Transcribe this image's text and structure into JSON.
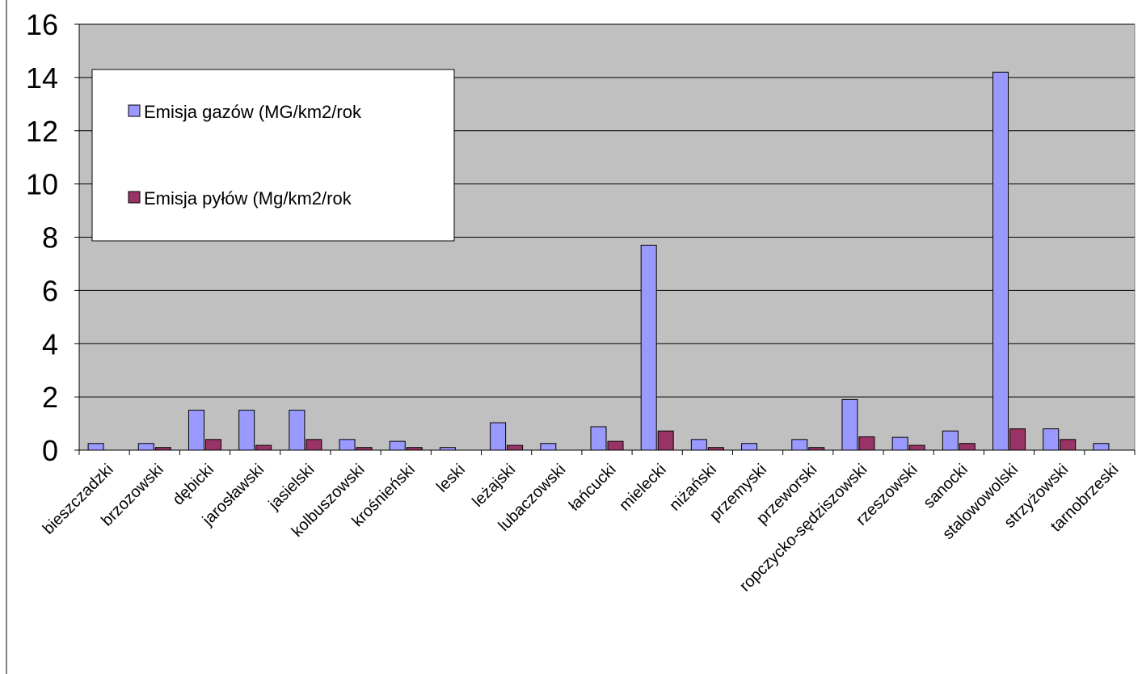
{
  "chart_data": {
    "type": "bar",
    "categories": [
      "bieszczadzki",
      "brzozowski",
      "dębicki",
      "jarosławski",
      "jasielski",
      "kolbuszowski",
      "krośnieński",
      "leski",
      "leżajski",
      "lubaczowski",
      "łańcucki",
      "mielecki",
      "niżański",
      "przemyski",
      "przeworski",
      "ropczycko-sędziszowski",
      "rzeszowski",
      "sanocki",
      "stalowowolski",
      "strzyżowski",
      "tarnobrzeski"
    ],
    "series": [
      {
        "name": "Emisja gazów (MG/km2/rok",
        "color": "#9999ff",
        "values": [
          0.25,
          0.25,
          1.5,
          1.5,
          1.5,
          0.4,
          0.33,
          0.1,
          1.03,
          0.25,
          0.88,
          7.7,
          0.4,
          0.25,
          0.4,
          1.9,
          0.48,
          0.72,
          14.2,
          0.8,
          0.25
        ]
      },
      {
        "name": "Emisja pyłów (Mg/km2/rok",
        "color": "#993366",
        "values": [
          0,
          0.1,
          0.4,
          0.18,
          0.4,
          0.1,
          0.1,
          0,
          0.18,
          0,
          0.33,
          0.72,
          0.1,
          0,
          0.1,
          0.5,
          0.18,
          0.25,
          0.8,
          0.4,
          0
        ]
      }
    ],
    "yticks": [
      0,
      2,
      4,
      6,
      8,
      10,
      12,
      14,
      16
    ],
    "ylim": [
      0,
      16
    ],
    "grid": true,
    "legend_position": "top-left",
    "plot_background": "#c0c0c0"
  }
}
